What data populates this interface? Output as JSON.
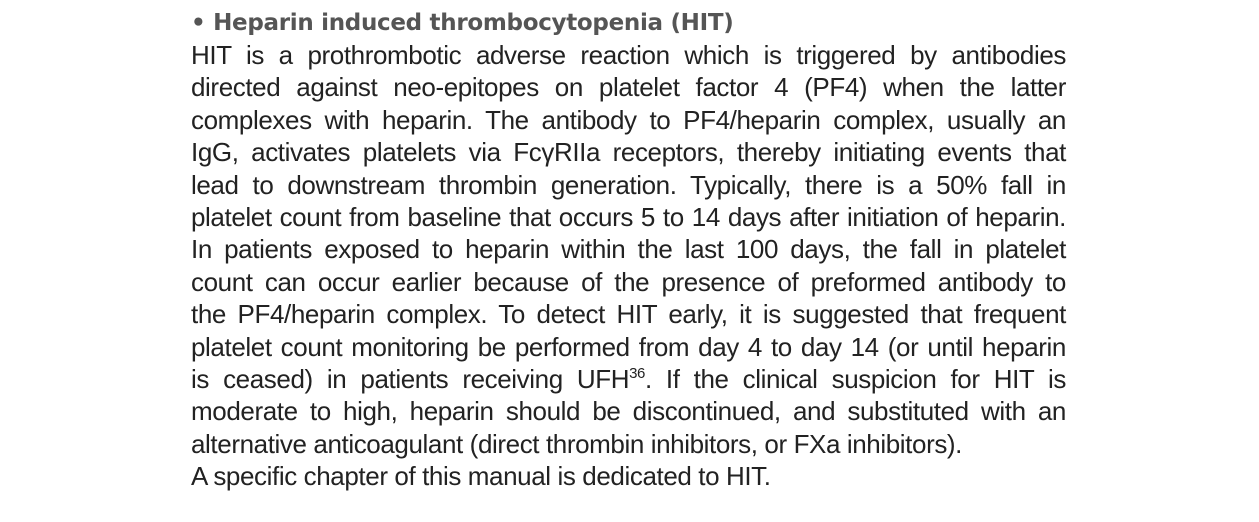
{
  "section": {
    "heading": "• Heparin induced thrombocytopenia (HIT)",
    "paragraph_lines": [
      "HIT is a prothrombotic adverse reaction which is triggered by antibodies",
      "directed against neo-epitopes on platelet factor 4 (PF4) when the latter",
      "complexes with heparin. The antibody to PF4/heparin complex, usually an",
      "IgG, activates platelets via FcγRIIa receptors, thereby initiating events that",
      "lead to downstream thrombin generation. Typically, there is a 50% fall in",
      "platelet count from baseline that occurs 5 to 14 days after initiation of heparin.",
      "In patients exposed to heparin within the last 100 days, the fall in platelet",
      "count can occur earlier because of the presence of preformed antibody to",
      "the PF4/heparin complex. To detect HIT early, it is suggested that frequent",
      "platelet count monitoring be performed from day 4 to day 14 (or until heparin"
    ],
    "line_11_before_ref": "is ceased) in patients receiving UFH",
    "line_11_ref": "36",
    "line_11_after_ref": ". If the clinical suspicion for HIT is",
    "paragraph_lines_end": [
      "moderate to high, heparin should be discontinued, and substituted with an",
      "alternative anticoagulant (direct thrombin inhibitors, or FXa inhibitors)."
    ],
    "closing": "A specific chapter of this manual is dedicated to HIT."
  }
}
